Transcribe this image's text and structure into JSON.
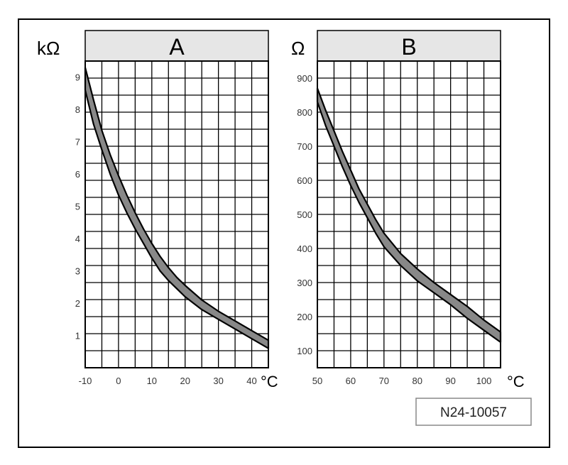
{
  "figure_code": "N24-10057",
  "chart_data": [
    {
      "type": "area",
      "title": "A",
      "ylabel": "kΩ",
      "xlabel": "°C",
      "xlim": [
        -10,
        45
      ],
      "ylim": [
        0,
        9.5
      ],
      "x_ticks": [
        -10,
        0,
        10,
        20,
        30,
        40
      ],
      "x_tick_labels": [
        "-10",
        "0",
        "10",
        "20",
        "30",
        "40"
      ],
      "y_ticks": [
        1,
        2,
        3,
        4,
        5,
        6,
        7,
        8,
        9
      ],
      "y_tick_labels": [
        "1",
        "2",
        "3",
        "4",
        "5",
        "6",
        "7",
        "8",
        "9"
      ],
      "grid": true,
      "band_color": "#888888",
      "band": {
        "x": [
          -10,
          -7.5,
          -5,
          -2.5,
          0,
          2.5,
          5,
          7.5,
          10,
          12.5,
          15,
          17.5,
          20,
          25,
          30,
          35,
          40,
          45
        ],
        "upper": [
          9.3,
          8.3,
          7.35,
          6.6,
          5.95,
          5.35,
          4.8,
          4.3,
          3.85,
          3.45,
          3.1,
          2.8,
          2.55,
          2.1,
          1.75,
          1.45,
          1.15,
          0.85
        ],
        "lower": [
          8.6,
          7.55,
          6.75,
          6.0,
          5.35,
          4.8,
          4.3,
          3.85,
          3.4,
          3.0,
          2.7,
          2.45,
          2.2,
          1.8,
          1.5,
          1.2,
          0.9,
          0.6
        ]
      }
    },
    {
      "type": "area",
      "title": "B",
      "ylabel": "Ω",
      "xlabel": "°C",
      "xlim": [
        50,
        105
      ],
      "ylim": [
        50,
        950
      ],
      "x_ticks": [
        50,
        60,
        70,
        80,
        90,
        100
      ],
      "x_tick_labels": [
        "50",
        "60",
        "70",
        "80",
        "90",
        "100"
      ],
      "y_ticks": [
        100,
        200,
        300,
        400,
        500,
        600,
        700,
        800,
        900
      ],
      "y_tick_labels": [
        "100",
        "200",
        "300",
        "400",
        "500",
        "600",
        "700",
        "800",
        "900"
      ],
      "grid": true,
      "band_color": "#888888",
      "band": {
        "x": [
          50,
          52.5,
          55,
          57.5,
          60,
          62.5,
          65,
          67.5,
          70,
          75,
          80,
          85,
          90,
          95,
          100,
          105
        ],
        "upper": [
          870,
          805,
          745,
          685,
          630,
          575,
          530,
          485,
          445,
          385,
          340,
          300,
          265,
          230,
          190,
          155
        ],
        "lower": [
          830,
          760,
          700,
          640,
          585,
          535,
          490,
          445,
          405,
          350,
          305,
          270,
          235,
          195,
          160,
          125
        ]
      }
    }
  ]
}
